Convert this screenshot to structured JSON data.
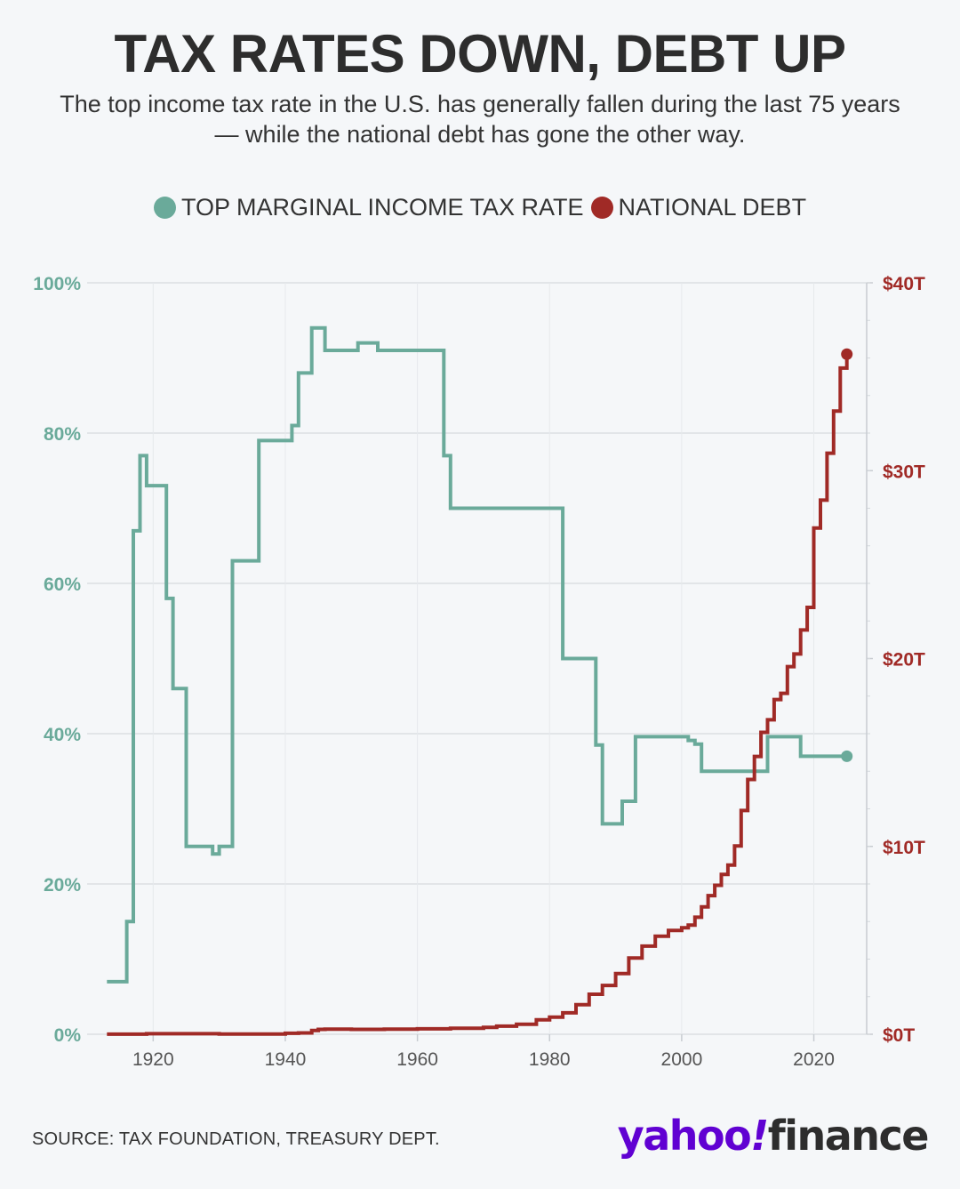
{
  "title": "TAX RATES DOWN, DEBT UP",
  "subtitle": "The top income tax rate in the U.S. has generally fallen during the last 75 years — while the national debt has gone the other way.",
  "legend": [
    {
      "label": "TOP MARGINAL INCOME TAX RATE",
      "color": "#6aaa9a"
    },
    {
      "label": "NATIONAL DEBT",
      "color": "#a02a26"
    }
  ],
  "source": "SOURCE: TAX FOUNDATION, TREASURY DEPT.",
  "logo": {
    "yahoo": "yahoo",
    "bang": "!",
    "finance": "finance"
  },
  "chart_data": {
    "type": "line",
    "step": true,
    "x_ticks": [
      1920,
      1940,
      1960,
      1980,
      2000,
      2020
    ],
    "xlim": [
      1910,
      2028
    ],
    "y_left": {
      "ticks": [
        "0%",
        "20%",
        "40%",
        "60%",
        "80%",
        "100%"
      ],
      "lim": [
        0,
        100
      ],
      "color": "#6aaa9a"
    },
    "y_right": {
      "ticks": [
        "$0T",
        "$10T",
        "$20T",
        "$30T",
        "$40T"
      ],
      "lim": [
        0,
        40
      ],
      "color": "#a02a26"
    },
    "grid": true,
    "series": [
      {
        "name": "TOP MARGINAL INCOME TAX RATE",
        "axis": "left",
        "color": "#6aaa9a",
        "points": [
          [
            1913,
            7
          ],
          [
            1914,
            7
          ],
          [
            1915,
            7
          ],
          [
            1916,
            15
          ],
          [
            1917,
            67
          ],
          [
            1918,
            77
          ],
          [
            1919,
            73
          ],
          [
            1920,
            73
          ],
          [
            1921,
            73
          ],
          [
            1922,
            58
          ],
          [
            1923,
            46
          ],
          [
            1924,
            46
          ],
          [
            1925,
            25
          ],
          [
            1929,
            24
          ],
          [
            1930,
            25
          ],
          [
            1932,
            63
          ],
          [
            1936,
            79
          ],
          [
            1941,
            81
          ],
          [
            1942,
            88
          ],
          [
            1944,
            94
          ],
          [
            1946,
            91
          ],
          [
            1950,
            91
          ],
          [
            1951,
            92
          ],
          [
            1954,
            91
          ],
          [
            1964,
            77
          ],
          [
            1965,
            70
          ],
          [
            1982,
            50
          ],
          [
            1987,
            38.5
          ],
          [
            1988,
            28
          ],
          [
            1991,
            31
          ],
          [
            1993,
            39.6
          ],
          [
            2001,
            39.1
          ],
          [
            2002,
            38.6
          ],
          [
            2003,
            35
          ],
          [
            2013,
            39.6
          ],
          [
            2018,
            37
          ],
          [
            2025,
            37
          ]
        ]
      },
      {
        "name": "NATIONAL DEBT",
        "axis": "right",
        "color": "#a02a26",
        "points": [
          [
            1913,
            0.003
          ],
          [
            1917,
            0.003
          ],
          [
            1919,
            0.03
          ],
          [
            1930,
            0.016
          ],
          [
            1940,
            0.05
          ],
          [
            1942,
            0.07
          ],
          [
            1944,
            0.2
          ],
          [
            1945,
            0.26
          ],
          [
            1946,
            0.27
          ],
          [
            1950,
            0.26
          ],
          [
            1955,
            0.27
          ],
          [
            1960,
            0.29
          ],
          [
            1965,
            0.32
          ],
          [
            1970,
            0.37
          ],
          [
            1972,
            0.43
          ],
          [
            1975,
            0.53
          ],
          [
            1978,
            0.77
          ],
          [
            1980,
            0.91
          ],
          [
            1982,
            1.14
          ],
          [
            1984,
            1.57
          ],
          [
            1986,
            2.13
          ],
          [
            1988,
            2.6
          ],
          [
            1990,
            3.23
          ],
          [
            1992,
            4.06
          ],
          [
            1994,
            4.69
          ],
          [
            1996,
            5.22
          ],
          [
            1998,
            5.53
          ],
          [
            2000,
            5.67
          ],
          [
            2001,
            5.81
          ],
          [
            2002,
            6.23
          ],
          [
            2003,
            6.78
          ],
          [
            2004,
            7.38
          ],
          [
            2005,
            7.93
          ],
          [
            2006,
            8.51
          ],
          [
            2007,
            9.01
          ],
          [
            2008,
            10.02
          ],
          [
            2009,
            11.91
          ],
          [
            2010,
            13.56
          ],
          [
            2011,
            14.79
          ],
          [
            2012,
            16.07
          ],
          [
            2013,
            16.74
          ],
          [
            2014,
            17.82
          ],
          [
            2015,
            18.15
          ],
          [
            2016,
            19.57
          ],
          [
            2017,
            20.24
          ],
          [
            2018,
            21.52
          ],
          [
            2019,
            22.72
          ],
          [
            2020,
            26.95
          ],
          [
            2021,
            28.43
          ],
          [
            2022,
            30.93
          ],
          [
            2023,
            33.17
          ],
          [
            2024,
            35.46
          ],
          [
            2025,
            36.2
          ]
        ]
      }
    ]
  }
}
